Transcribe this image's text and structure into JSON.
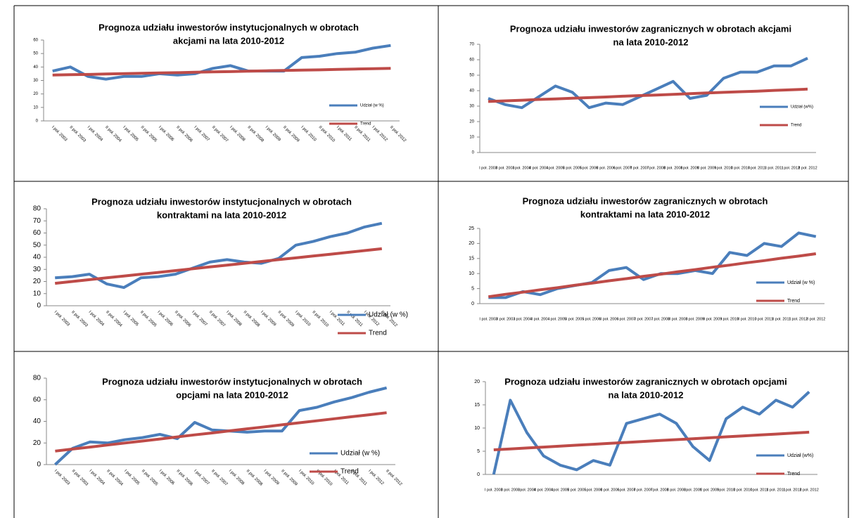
{
  "chart_data": [
    {
      "type": "line",
      "title": [
        "Prognoza udziału inwestorów instytucjonalnych w obrotach",
        "akcjami na lata 2010-2012"
      ],
      "categories": [
        "I poł. 2003",
        "II poł. 2003",
        "I poł. 2004",
        "II poł. 2004",
        "I poł. 2005",
        "II poł. 2005",
        "I poł. 2006",
        "II poł. 2006",
        "I poł. 2007",
        "II poł. 2007",
        "I poł. 2008",
        "II poł. 2008",
        "I poł. 2009",
        "II poł. 2009",
        "I poł. 2010",
        "II poł. 2010",
        "I poł. 2011",
        "II poł. 2011",
        "I poł. 2012",
        "II poł. 2012"
      ],
      "series": [
        {
          "name": "Udział (w %)",
          "color": "#4a7ebb",
          "values": [
            37,
            40,
            33,
            31,
            33,
            33,
            35,
            34,
            35,
            39,
            41,
            37,
            37,
            37,
            47,
            48,
            50,
            51,
            54,
            56
          ]
        },
        {
          "name": "Trend",
          "color": "#be4b48",
          "values": [
            34,
            34.3,
            34.5,
            34.8,
            35.1,
            35.3,
            35.6,
            35.8,
            36.1,
            36.4,
            36.6,
            36.9,
            37.2,
            37.4,
            37.7,
            37.9,
            38.2,
            38.5,
            38.7,
            39
          ]
        }
      ],
      "ylim": [
        0,
        60
      ],
      "yticks": [
        0,
        10,
        20,
        30,
        40,
        50,
        60
      ]
    },
    {
      "type": "line",
      "title": [
        "Prognoza udziału inwestorów zagranicznych w obrotach akcjami",
        "na lata 2010-2012"
      ],
      "categories": [
        "I poł. 2003",
        "II poł. 2003",
        "I poł. 2004",
        "II poł. 2004",
        "I poł. 2005",
        "II poł. 2005",
        "I poł. 2006",
        "II poł. 2006",
        "I poł. 2007",
        "II poł. 2007",
        "I poł. 2008",
        "II poł. 2008",
        "I poł. 2009",
        "II poł. 2009",
        "I poł. 2010",
        "II poł. 2010",
        "I poł. 2011",
        "II poł. 2011",
        "I poł. 2012",
        "II poł. 2012"
      ],
      "series": [
        {
          "name": "Udział (w%)",
          "color": "#4a7ebb",
          "values": [
            35,
            31,
            29,
            36,
            43,
            39,
            29,
            32,
            31,
            36,
            41,
            46,
            35,
            37,
            48,
            52,
            52,
            56,
            56,
            61
          ]
        },
        {
          "name": "Trend",
          "color": "#be4b48",
          "values": [
            33,
            33.4,
            33.8,
            34.3,
            34.7,
            35.1,
            35.5,
            35.9,
            36.4,
            36.8,
            37.2,
            37.6,
            38.1,
            38.5,
            38.9,
            39.3,
            39.7,
            40.2,
            40.6,
            41
          ]
        }
      ],
      "ylim": [
        0,
        70
      ],
      "yticks": [
        0,
        10,
        20,
        30,
        40,
        50,
        60,
        70
      ]
    },
    {
      "type": "line",
      "title": [
        "Prognoza udziału inwestorów instytucjonalnych w obrotach",
        "kontraktami na lata 2010-2012"
      ],
      "categories": [
        "I poł. 2003",
        "II poł. 2003",
        "I poł. 2004",
        "II poł. 2004",
        "I poł. 2005",
        "II poł. 2005",
        "I poł. 2006",
        "II poł. 2006",
        "I poł. 2007",
        "II poł. 2007",
        "I poł. 2008",
        "II poł. 2008",
        "I poł. 2009",
        "II poł. 2009",
        "I poł. 2010",
        "II poł. 2010",
        "I poł. 2011",
        "II poł. 2011",
        "I poł. 2012",
        "II poł. 2012"
      ],
      "series": [
        {
          "name": "Udział (w %)",
          "color": "#4a7ebb",
          "values": [
            23,
            24,
            26,
            18,
            15,
            23,
            24,
            26,
            31,
            36,
            38,
            36,
            35,
            39,
            50,
            53,
            57,
            60,
            65,
            68
          ]
        },
        {
          "name": "Trend",
          "color": "#be4b48",
          "values": [
            18.5,
            20,
            21.5,
            23,
            24.5,
            26,
            27.5,
            29,
            30.5,
            32,
            33.5,
            35,
            36.5,
            38,
            39.5,
            41,
            42.5,
            44,
            45.5,
            47
          ]
        }
      ],
      "ylim": [
        0,
        80
      ],
      "yticks": [
        0,
        10,
        20,
        30,
        40,
        50,
        60,
        70,
        80
      ]
    },
    {
      "type": "line",
      "title": [
        "Prognoza udziału inwestorów zagranicznych w obrotach",
        "kontraktami na lata 2010-2012"
      ],
      "categories": [
        "I poł. 2003",
        "II poł. 2003",
        "I poł. 2004",
        "II poł. 2004",
        "I poł. 2005",
        "II poł. 2005",
        "I poł. 2006",
        "II poł. 2006",
        "I poł. 2007",
        "II poł. 2007",
        "I poł. 2008",
        "II poł. 2008",
        "I poł. 2009",
        "II poł. 2009",
        "I poł. 2010",
        "II poł. 2010",
        "I poł. 2011",
        "II poł. 2011",
        "I poł. 2012",
        "II poł. 2012"
      ],
      "series": [
        {
          "name": "Udział (w %)",
          "color": "#4a7ebb",
          "values": [
            2,
            2,
            4,
            3,
            5,
            6,
            7,
            11,
            12,
            8,
            10,
            10,
            11,
            10,
            17,
            16,
            20,
            19,
            23.5,
            22.3
          ]
        },
        {
          "name": "Trend",
          "color": "#be4b48",
          "values": [
            2.3,
            3.1,
            3.8,
            4.6,
            5.3,
            6.1,
            6.8,
            7.6,
            8.3,
            9.1,
            9.8,
            10.6,
            11.3,
            12.1,
            12.8,
            13.6,
            14.3,
            15.1,
            15.8,
            16.6
          ]
        }
      ],
      "ylim": [
        0,
        25
      ],
      "yticks": [
        0,
        5,
        10,
        15,
        20,
        25
      ]
    },
    {
      "type": "line",
      "title": [
        "Prognoza udziału inwestorów instytucjonalnych w obrotach",
        "opcjami na lata 2010-2012"
      ],
      "categories": [
        "I poł. 2003",
        "II poł. 2003",
        "I poł. 2004",
        "II poł. 2004",
        "I poł. 2005",
        "II poł. 2005",
        "I poł. 2006",
        "II poł. 2006",
        "I poł. 2007",
        "II poł. 2007",
        "I poł. 2008",
        "II poł. 2008",
        "I poł. 2009",
        "II poł. 2009",
        "I poł. 2010",
        "II poł. 2010",
        "I poł. 2011",
        "II poł. 2011",
        "I poł. 2012",
        "II poł. 2012"
      ],
      "series": [
        {
          "name": "Udział (w %)",
          "color": "#4a7ebb",
          "values": [
            0,
            15,
            21,
            20,
            23,
            25,
            28,
            24,
            39,
            32,
            31,
            30,
            31,
            31,
            50,
            53,
            58,
            62,
            67,
            71
          ]
        },
        {
          "name": "Trend",
          "color": "#be4b48",
          "values": [
            12.5,
            14.4,
            16.2,
            18.1,
            20,
            21.8,
            23.7,
            25.6,
            27.5,
            29.3,
            31.2,
            33.1,
            34.9,
            36.8,
            38.7,
            40.5,
            42.4,
            44.3,
            46.1,
            48
          ]
        }
      ],
      "ylim": [
        0,
        80
      ],
      "yticks": [
        0,
        20,
        40,
        60,
        80
      ]
    },
    {
      "type": "line",
      "title": [
        "Prognoza udziału inwestorów zagranicznych w obrotach opcjami",
        "na lata 2010-2012"
      ],
      "categories": [
        "I poł. 2003",
        "II poł. 2003",
        "I poł. 2004",
        "II poł. 2004",
        "I poł. 2005",
        "II poł. 2005",
        "I poł. 2006",
        "II poł. 2006",
        "I poł. 2007",
        "II poł. 2007",
        "I poł. 2008",
        "II poł. 2008",
        "I poł. 2009",
        "II poł. 2009",
        "I poł. 2010",
        "II poł. 2010",
        "I poł. 2011",
        "II poł. 2011",
        "I poł. 2012",
        "II poł. 2012"
      ],
      "series": [
        {
          "name": "Udział (w%)",
          "color": "#4a7ebb",
          "values": [
            0,
            16,
            9,
            4,
            2,
            1,
            3,
            2,
            11,
            12,
            13,
            11,
            6,
            3,
            12,
            14.5,
            13,
            16,
            14.5,
            17.8
          ]
        },
        {
          "name": "Trend",
          "color": "#be4b48",
          "values": [
            5.3,
            5.5,
            5.7,
            5.9,
            6.1,
            6.3,
            6.5,
            6.7,
            6.9,
            7.1,
            7.3,
            7.5,
            7.7,
            7.9,
            8.1,
            8.3,
            8.5,
            8.7,
            8.9,
            9.1
          ]
        }
      ],
      "ylim": [
        0,
        20
      ],
      "yticks": [
        0,
        5,
        10,
        15,
        20
      ]
    }
  ]
}
